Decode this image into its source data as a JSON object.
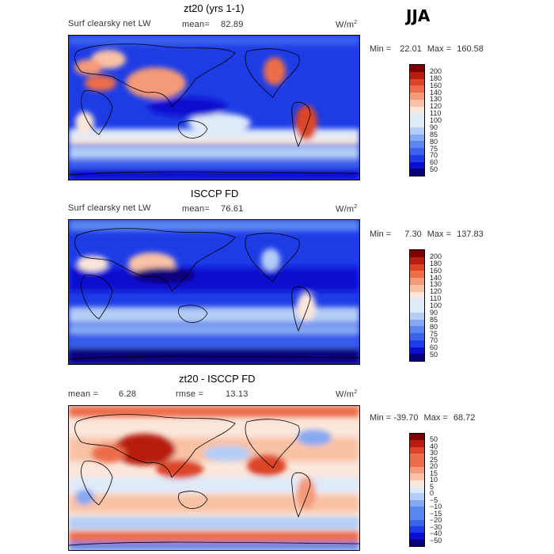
{
  "season": "JJA",
  "colors": {
    "base_scale": [
      "#08007a",
      "#0a0fd0",
      "#1e3ce6",
      "#3a62ec",
      "#5a86ef",
      "#86a8f2",
      "#b3cdf6",
      "#dfeaf9",
      "#fbe6da",
      "#f9c2a6",
      "#f49a78",
      "#ec6d48",
      "#dc4426",
      "#b81c10",
      "#7f0000"
    ],
    "diff_scale": [
      "#08007a",
      "#0a0fd0",
      "#1e3ce6",
      "#3a62ec",
      "#5a86ef",
      "#86a8f2",
      "#b3cdf6",
      "#dfeaf9",
      "#fbe6da",
      "#f9c2a6",
      "#f49a78",
      "#ec6d48",
      "#dc4426",
      "#b81c10",
      "#7f0000"
    ]
  },
  "chart_data": [
    {
      "type": "heatmap",
      "title": "zt20 (yrs 1-1)",
      "variable": "Surf clearsky net LW",
      "mean_label": "mean=",
      "mean": "82.89",
      "units": "W/m",
      "units_exp": "2",
      "min_label": "Min =",
      "min": "22.01",
      "max_label": "Max =",
      "max": "160.58",
      "colorbar_levels": [
        "200",
        "180",
        "160",
        "140",
        "130",
        "120",
        "110",
        "100",
        "90",
        "85",
        "80",
        "75",
        "70",
        "60",
        "50"
      ]
    },
    {
      "type": "heatmap",
      "title": "ISCCP FD",
      "variable": "Surf clearsky net LW",
      "mean_label": "mean=",
      "mean": "76.61",
      "units": "W/m",
      "units_exp": "2",
      "min_label": "Min =",
      "min": "7.30",
      "max_label": "Max =",
      "max": "137.83",
      "colorbar_levels": [
        "200",
        "180",
        "160",
        "140",
        "130",
        "120",
        "110",
        "100",
        "90",
        "85",
        "80",
        "75",
        "70",
        "60",
        "50"
      ]
    },
    {
      "type": "heatmap",
      "title": "zt20 - ISCCP FD",
      "mean_label": "mean =",
      "mean": "6.28",
      "rmse_label": "rmse =",
      "rmse": "13.13",
      "units": "W/m",
      "units_exp": "2",
      "min_label": "Min =",
      "min": "-39.70",
      "max_label": "Max =",
      "max": "68.72",
      "colorbar_levels": [
        "50",
        "40",
        "30",
        "25",
        "20",
        "15",
        "10",
        "5",
        "0",
        "−5",
        "−10",
        "−15",
        "−20",
        "−30",
        "−40",
        "−50"
      ]
    }
  ]
}
